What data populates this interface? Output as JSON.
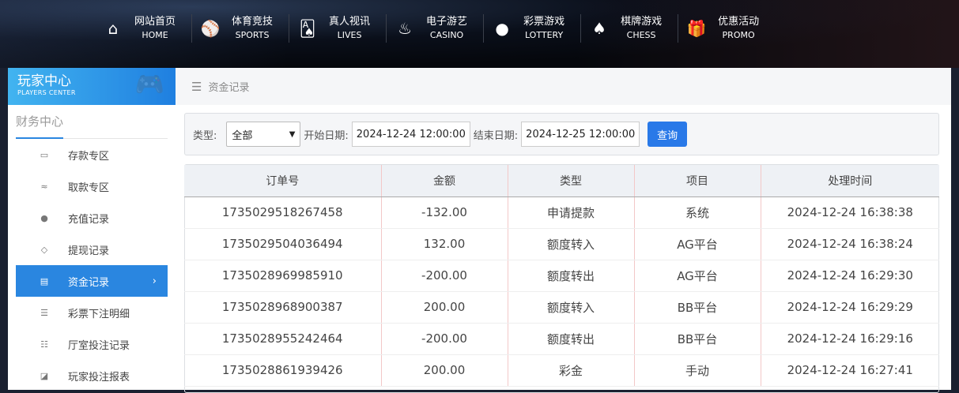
{
  "nav": [
    {
      "cn": "网站首页",
      "en": "HOME",
      "icon": "⌂",
      "name": "home"
    },
    {
      "cn": "体育竞技",
      "en": "SPORTS",
      "icon": "⚾",
      "name": "sports"
    },
    {
      "cn": "真人视讯",
      "en": "LIVES",
      "icon": "🂡",
      "name": "lives"
    },
    {
      "cn": "电子游艺",
      "en": "CASINO",
      "icon": "♨",
      "name": "casino"
    },
    {
      "cn": "彩票游戏",
      "en": "LOTTERY",
      "icon": "●",
      "name": "lottery"
    },
    {
      "cn": "棋牌游戏",
      "en": "CHESS",
      "icon": "♠",
      "name": "chess"
    },
    {
      "cn": "优惠活动",
      "en": "PROMO",
      "icon": "🎁",
      "name": "promo"
    }
  ],
  "sidebar": {
    "title": "玩家中心",
    "subtitle": "PLAYERS CENTER",
    "section": "财务中心",
    "items": [
      {
        "label": "存款专区",
        "icon": "▭"
      },
      {
        "label": "取款专区",
        "icon": "≈"
      },
      {
        "label": "充值记录",
        "icon": "●"
      },
      {
        "label": "提现记录",
        "icon": "◇"
      },
      {
        "label": "资金记录",
        "icon": "▤",
        "active": true
      },
      {
        "label": "彩票下注明细",
        "icon": "☰"
      },
      {
        "label": "厅室投注记录",
        "icon": "☷"
      },
      {
        "label": "玩家投注报表",
        "icon": "◪"
      }
    ]
  },
  "breadcrumb": "资金记录",
  "filter": {
    "type_label": "类型:",
    "type_value": "全部",
    "start_label": "开始日期:",
    "start_value": "2024-12-24 12:00:00",
    "end_label": "结束日期:",
    "end_value": "2024-12-25 12:00:00",
    "query": "查询"
  },
  "table": {
    "headers": [
      "订单号",
      "金额",
      "类型",
      "项目",
      "处理时间"
    ],
    "rows": [
      [
        "1735029518267458",
        "-132.00",
        "申请提款",
        "系统",
        "2024-12-24 16:38:38"
      ],
      [
        "1735029504036494",
        "132.00",
        "额度转入",
        "AG平台",
        "2024-12-24 16:38:24"
      ],
      [
        "1735028969985910",
        "-200.00",
        "额度转出",
        "AG平台",
        "2024-12-24 16:29:30"
      ],
      [
        "1735028968900387",
        "200.00",
        "额度转入",
        "BB平台",
        "2024-12-24 16:29:29"
      ],
      [
        "1735028955242464",
        "-200.00",
        "额度转出",
        "BB平台",
        "2024-12-24 16:29:16"
      ],
      [
        "1735028861939426",
        "200.00",
        "彩金",
        "手动",
        "2024-12-24 16:27:41"
      ]
    ]
  }
}
